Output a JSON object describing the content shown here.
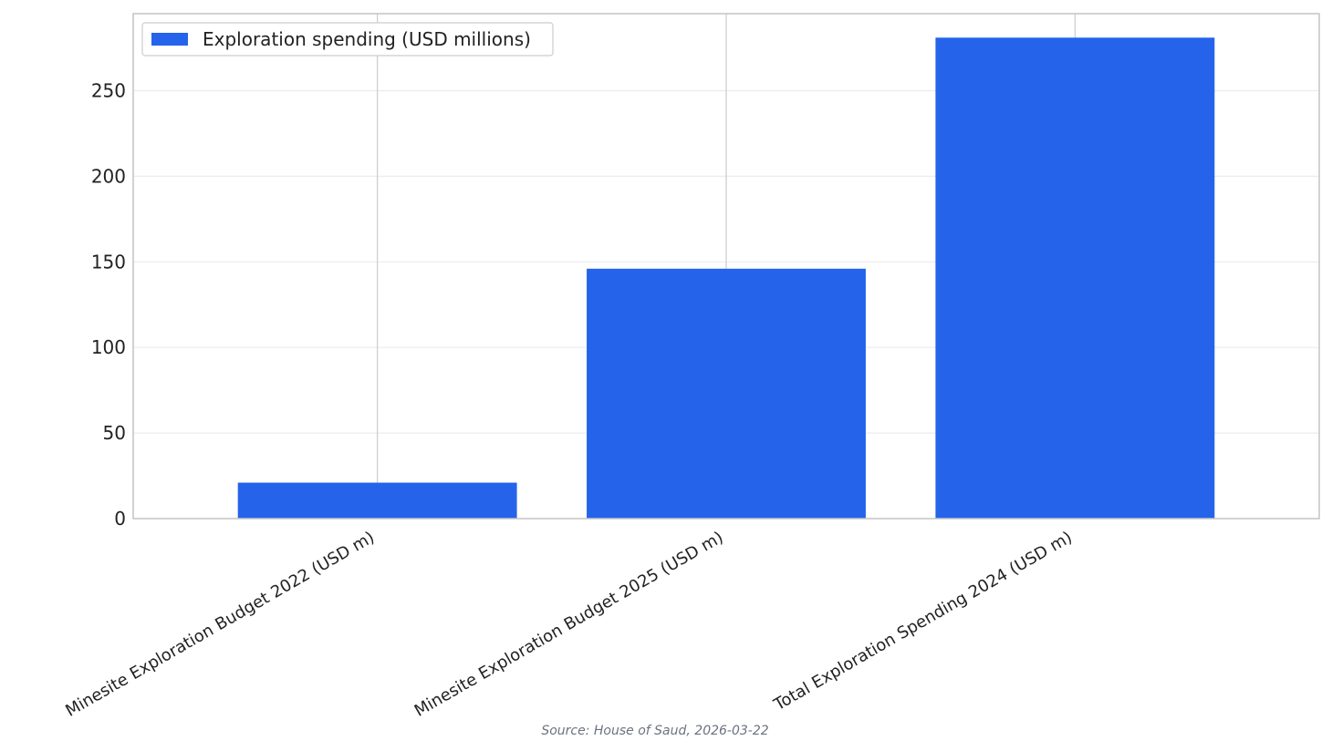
{
  "chart_data": {
    "type": "bar",
    "categories": [
      "Minesite Exploration Budget 2022 (USD m)",
      "Minesite Exploration Budget 2025 (USD m)",
      "Total Exploration Spending 2024 (USD m)"
    ],
    "series": [
      {
        "name": "Exploration spending (USD millions)",
        "values": [
          21,
          146,
          281
        ],
        "color": "#2563eb"
      }
    ],
    "ylim": [
      0,
      295
    ],
    "yticks": [
      0,
      50,
      100,
      150,
      200,
      250
    ],
    "grid": true,
    "legend_position": "top-left",
    "source": "Source: House of Saud, 2026-03-22"
  }
}
